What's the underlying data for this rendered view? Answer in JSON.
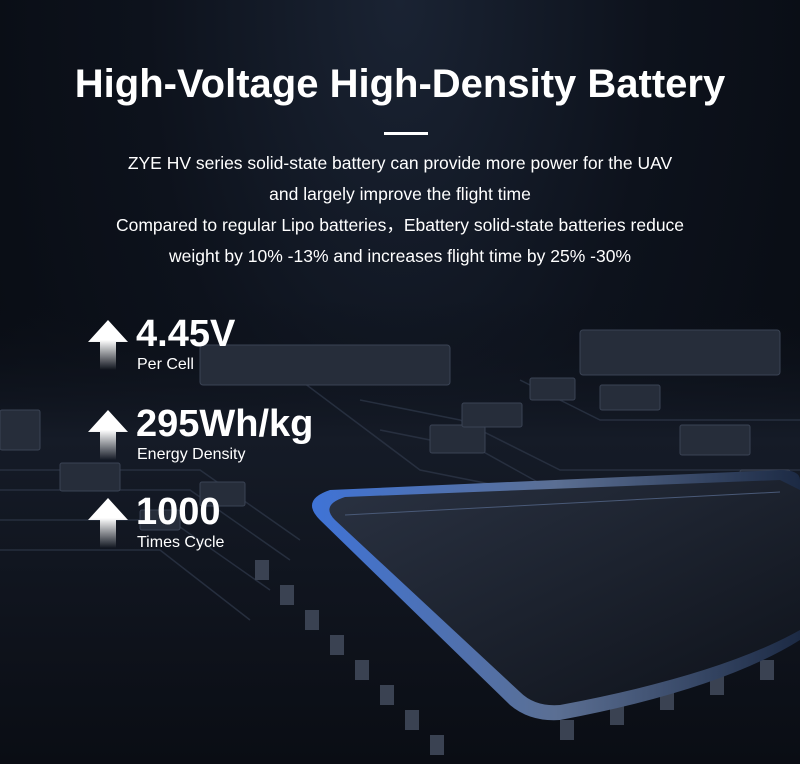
{
  "header": {
    "title": "High-Voltage High-Density Battery"
  },
  "description": {
    "lines": [
      "ZYE HV series solid-state battery can provide more power for the UAV",
      "and largely improve the flight time",
      "Compared to regular Lipo batteries，Ebattery solid-state batteries reduce",
      "weight by 10% -13% and increases flight time by 25% -30%"
    ]
  },
  "stats": [
    {
      "icon": "arrow-up-icon",
      "value": "4.45V",
      "label": "Per Cell"
    },
    {
      "icon": "arrow-up-icon",
      "value": "295Wh/kg",
      "label": "Energy Density"
    },
    {
      "icon": "arrow-up-icon",
      "value": "1000",
      "label": "Times Cycle"
    }
  ],
  "colors": {
    "background": "#0b0f18",
    "text": "#ffffff",
    "accent_glow": "#3a6fd8"
  }
}
